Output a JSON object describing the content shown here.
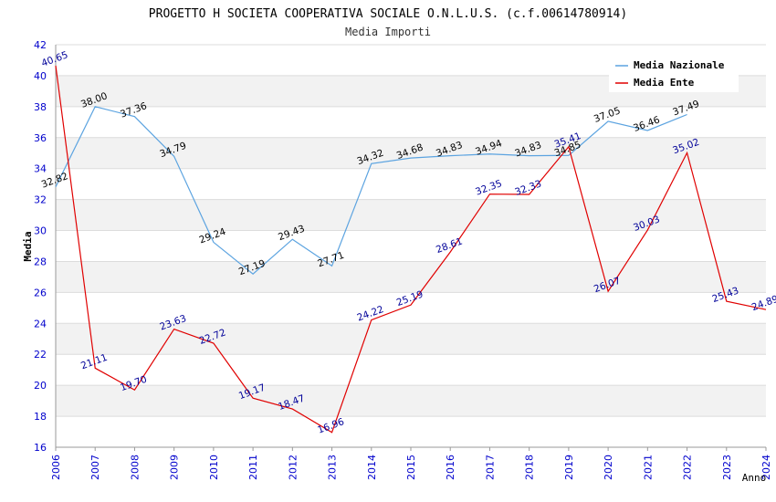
{
  "chart_data": {
    "type": "line",
    "title": "PROGETTO H SOCIETA COOPERATIVA SOCIALE O.N.L.U.S. (c.f.00614780914)",
    "subtitle": "Media Importi",
    "xlabel": "Anno",
    "ylabel": "Media",
    "ylim": [
      16,
      42
    ],
    "yticks": [
      16,
      18,
      20,
      22,
      24,
      26,
      28,
      30,
      32,
      34,
      36,
      38,
      40,
      42
    ],
    "categories": [
      "2006",
      "2007",
      "2008",
      "2009",
      "2010",
      "2011",
      "2012",
      "2013",
      "2014",
      "2015",
      "2016",
      "2017",
      "2018",
      "2019",
      "2020",
      "2021",
      "2022",
      "2023",
      "2024"
    ],
    "legend_position": "top-right",
    "series": [
      {
        "name": "Media Nazionale",
        "color": "#5ba3e0",
        "label_color": "#000000",
        "values": [
          32.82,
          38.0,
          37.36,
          34.79,
          29.24,
          27.19,
          29.43,
          27.71,
          34.32,
          34.68,
          34.83,
          34.94,
          34.83,
          34.85,
          37.05,
          36.46,
          37.49,
          null,
          null
        ],
        "labels": [
          "32.82",
          "38.00",
          "37.36",
          "34.79",
          "29.24",
          "27.19",
          "29.43",
          "27.71",
          "34.32",
          "34.68",
          "34.83",
          "34.94",
          "34.83",
          "34.85",
          "37.05",
          "36.46",
          "37.49",
          null,
          null
        ]
      },
      {
        "name": "Media Ente",
        "color": "#e00000",
        "label_color": "#000099",
        "values": [
          40.65,
          21.11,
          19.7,
          23.63,
          22.72,
          19.17,
          18.47,
          16.96,
          24.22,
          25.19,
          28.61,
          32.35,
          32.33,
          35.41,
          26.07,
          30.03,
          35.02,
          25.43,
          24.89
        ],
        "labels": [
          "40.65",
          "21.11",
          "19.70",
          "23.63",
          "22.72",
          "19.17",
          "18.47",
          "16.96",
          "24.22",
          "25.19",
          "28.61",
          "32.35",
          "32.33",
          "35.41",
          "26.07",
          "30.03",
          "35.02",
          "25.43",
          "24.89"
        ]
      }
    ]
  }
}
